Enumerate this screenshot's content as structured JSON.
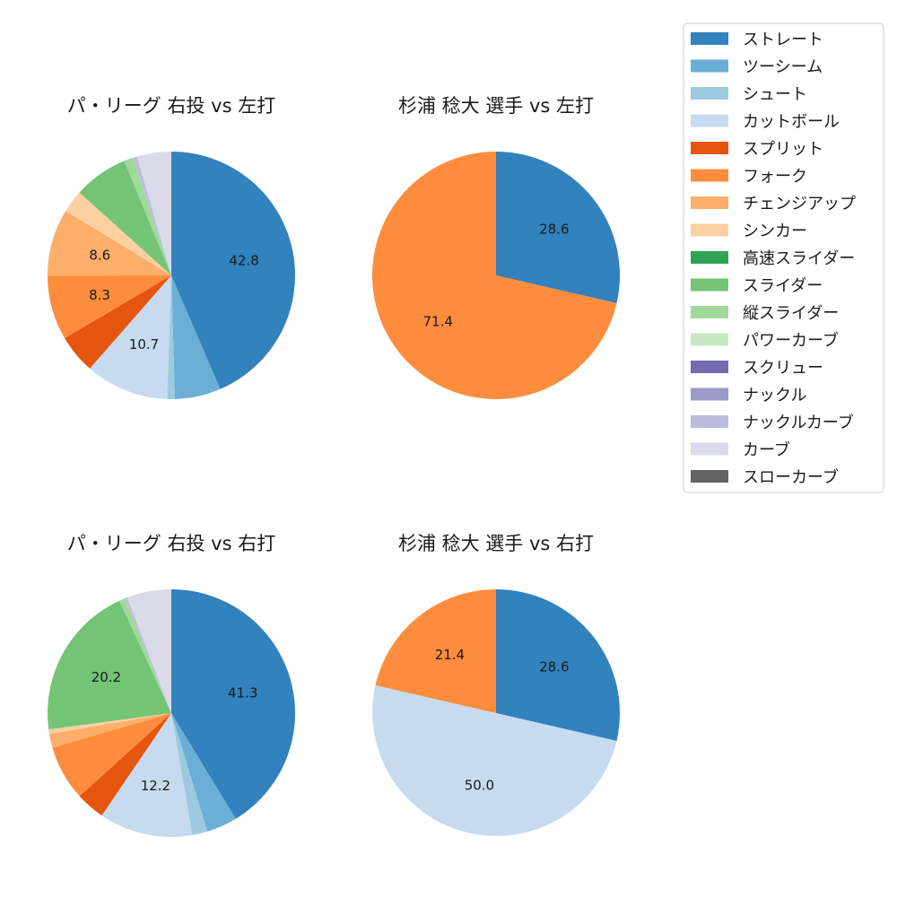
{
  "legend": {
    "items": [
      {
        "label": "ストレート",
        "color": "#3182bd"
      },
      {
        "label": "ツーシーム",
        "color": "#6baed6"
      },
      {
        "label": "シュート",
        "color": "#9ecae1"
      },
      {
        "label": "カットボール",
        "color": "#c6dbef"
      },
      {
        "label": "スプリット",
        "color": "#e6550d"
      },
      {
        "label": "フォーク",
        "color": "#fd8d3c"
      },
      {
        "label": "チェンジアップ",
        "color": "#fdae6b"
      },
      {
        "label": "シンカー",
        "color": "#fdd0a2"
      },
      {
        "label": "高速スライダー",
        "color": "#31a354"
      },
      {
        "label": "スライダー",
        "color": "#74c476"
      },
      {
        "label": "縦スライダー",
        "color": "#a1d99b"
      },
      {
        "label": "パワーカーブ",
        "color": "#c7e9c0"
      },
      {
        "label": "スクリュー",
        "color": "#756bb1"
      },
      {
        "label": "ナックル",
        "color": "#9e9ac8"
      },
      {
        "label": "ナックルカーブ",
        "color": "#bcbddc"
      },
      {
        "label": "カーブ",
        "color": "#dadaeb"
      },
      {
        "label": "スローカーブ",
        "color": "#636363"
      }
    ]
  },
  "chart_data": [
    {
      "type": "pie",
      "title": "パ・リーグ 右投 vs 左打",
      "slices": [
        {
          "category": "ストレート",
          "value": 42.8,
          "label": "42.8"
        },
        {
          "category": "ツーシーム",
          "value": 5.9,
          "label": ""
        },
        {
          "category": "シュート",
          "value": 1.0,
          "label": ""
        },
        {
          "category": "カットボール",
          "value": 10.7,
          "label": "10.7"
        },
        {
          "category": "スプリット",
          "value": 5.0,
          "label": ""
        },
        {
          "category": "フォーク",
          "value": 8.3,
          "label": "8.3"
        },
        {
          "category": "チェンジアップ",
          "value": 8.6,
          "label": "8.6"
        },
        {
          "category": "シンカー",
          "value": 2.9,
          "label": ""
        },
        {
          "category": "スライダー",
          "value": 7.0,
          "label": ""
        },
        {
          "category": "縦スライダー",
          "value": 1.2,
          "label": ""
        },
        {
          "category": "ナックルカーブ",
          "value": 0.5,
          "label": ""
        },
        {
          "category": "カーブ",
          "value": 4.4,
          "label": ""
        }
      ]
    },
    {
      "type": "pie",
      "title": "杉浦 稔大 選手 vs 左打",
      "slices": [
        {
          "category": "ストレート",
          "value": 28.6,
          "label": "28.6"
        },
        {
          "category": "フォーク",
          "value": 71.4,
          "label": "71.4"
        }
      ]
    },
    {
      "type": "pie",
      "title": "パ・リーグ 右投 vs 右打",
      "slices": [
        {
          "category": "ストレート",
          "value": 41.3,
          "label": "41.3"
        },
        {
          "category": "ツーシーム",
          "value": 4.0,
          "label": ""
        },
        {
          "category": "シュート",
          "value": 2.0,
          "label": ""
        },
        {
          "category": "カットボール",
          "value": 12.2,
          "label": "12.2"
        },
        {
          "category": "スプリット",
          "value": 3.8,
          "label": ""
        },
        {
          "category": "フォーク",
          "value": 7.2,
          "label": ""
        },
        {
          "category": "チェンジアップ",
          "value": 1.8,
          "label": ""
        },
        {
          "category": "シンカー",
          "value": 0.6,
          "label": ""
        },
        {
          "category": "スライダー",
          "value": 20.2,
          "label": "20.2"
        },
        {
          "category": "縦スライダー",
          "value": 0.8,
          "label": ""
        },
        {
          "category": "ナックルカーブ",
          "value": 0.3,
          "label": ""
        },
        {
          "category": "カーブ",
          "value": 5.8,
          "label": ""
        }
      ]
    },
    {
      "type": "pie",
      "title": "杉浦 稔大 選手 vs 右打",
      "slices": [
        {
          "category": "ストレート",
          "value": 28.6,
          "label": "28.6"
        },
        {
          "category": "カットボール",
          "value": 50.0,
          "label": "50.0"
        },
        {
          "category": "フォーク",
          "value": 21.4,
          "label": "21.4"
        }
      ]
    }
  ]
}
